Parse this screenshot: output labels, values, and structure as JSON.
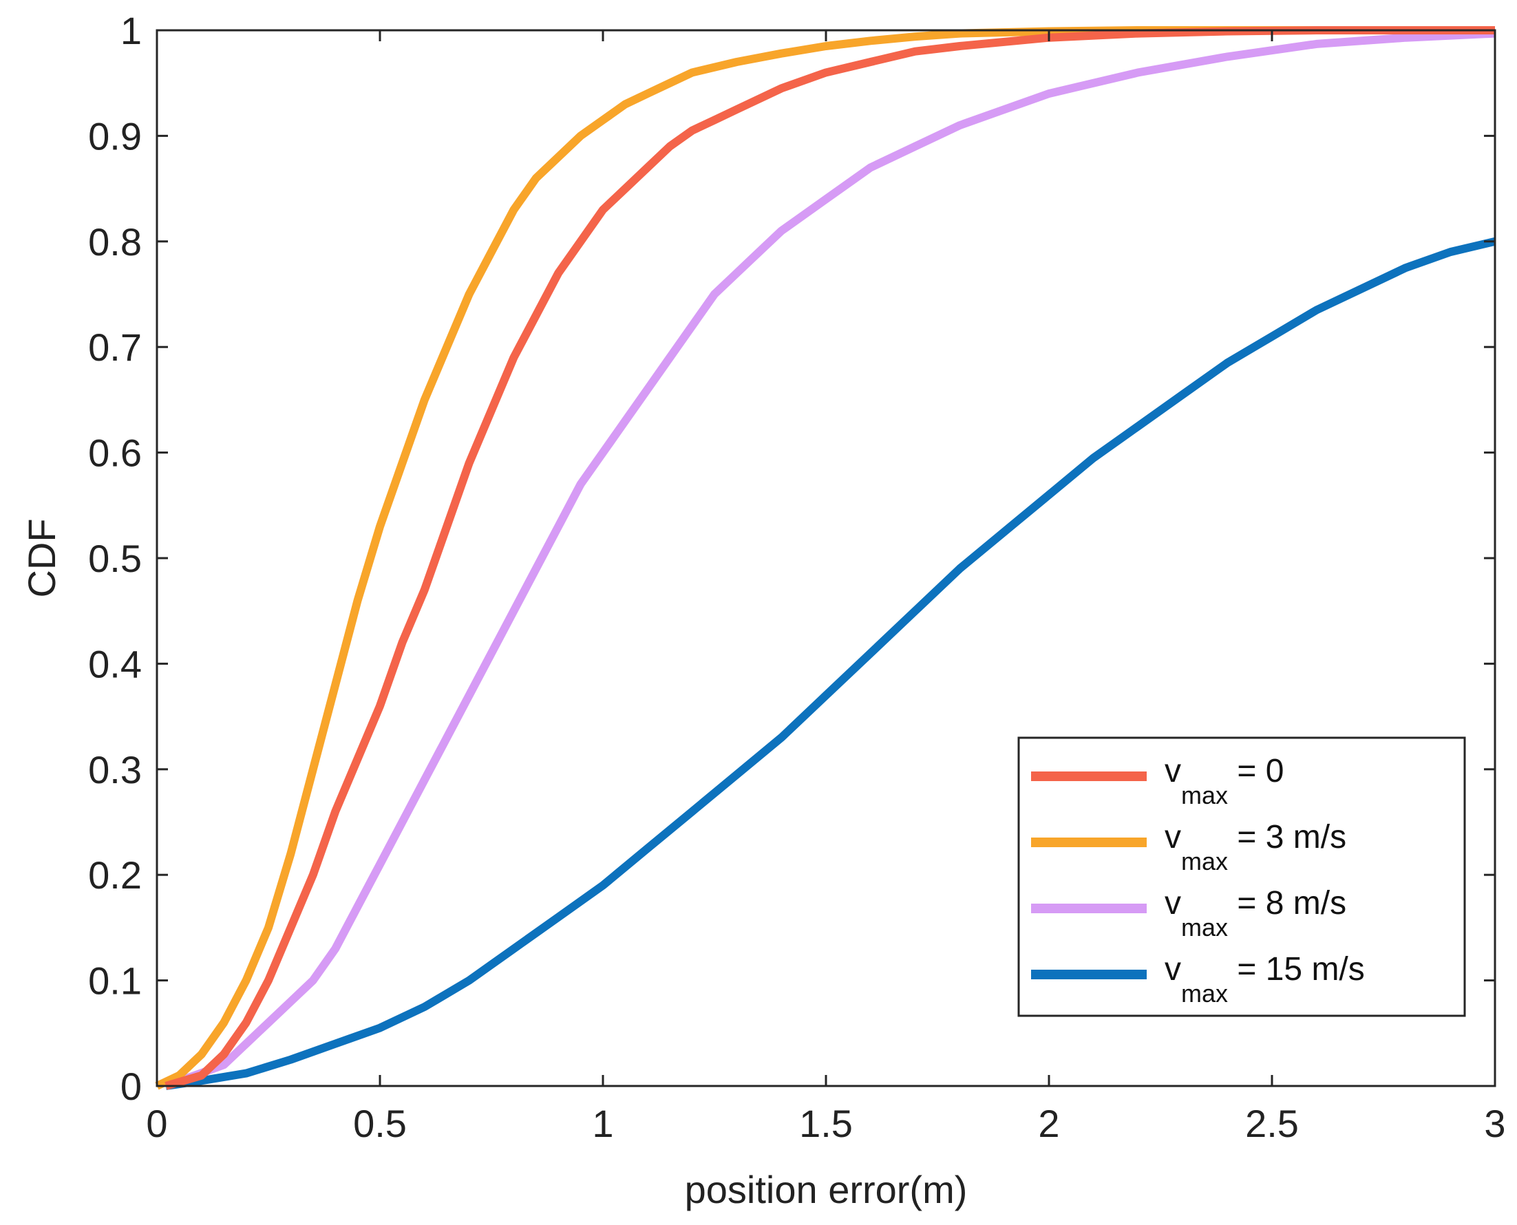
{
  "chart_data": {
    "type": "line",
    "title": "",
    "xlabel": "position error(m)",
    "ylabel": "CDF",
    "xlim": [
      0,
      3
    ],
    "ylim": [
      0,
      1
    ],
    "xticks": [
      0,
      0.5,
      1,
      1.5,
      2,
      2.5,
      3
    ],
    "yticks": [
      0,
      0.1,
      0.2,
      0.3,
      0.4,
      0.5,
      0.6,
      0.7,
      0.8,
      0.9,
      1
    ],
    "xtick_labels": [
      "0",
      "0.5",
      "1",
      "1.5",
      "2",
      "2.5",
      "3"
    ],
    "ytick_labels": [
      "0",
      "0.1",
      "0.2",
      "0.3",
      "0.4",
      "0.5",
      "0.6",
      "0.7",
      "0.8",
      "0.9",
      "1"
    ],
    "grid": false,
    "legend_position": "bottom-right",
    "series": [
      {
        "name": "v_max = 0",
        "label_main": "v",
        "label_sub": "max",
        "label_rest": " = 0",
        "color": "#f4644a",
        "x": [
          0.02,
          0.1,
          0.15,
          0.2,
          0.25,
          0.3,
          0.35,
          0.4,
          0.45,
          0.5,
          0.55,
          0.6,
          0.65,
          0.7,
          0.75,
          0.8,
          0.85,
          0.9,
          0.95,
          1.0,
          1.05,
          1.1,
          1.15,
          1.2,
          1.25,
          1.3,
          1.4,
          1.5,
          1.6,
          1.7,
          1.8,
          2.0,
          2.2,
          2.4,
          2.6,
          2.8,
          3.0
        ],
        "y": [
          0.0,
          0.01,
          0.03,
          0.06,
          0.1,
          0.15,
          0.2,
          0.26,
          0.31,
          0.36,
          0.42,
          0.47,
          0.53,
          0.59,
          0.64,
          0.69,
          0.73,
          0.77,
          0.8,
          0.83,
          0.85,
          0.87,
          0.89,
          0.905,
          0.915,
          0.925,
          0.945,
          0.96,
          0.97,
          0.98,
          0.985,
          0.993,
          0.997,
          0.999,
          1.0,
          1.0,
          1.0
        ]
      },
      {
        "name": "v_max = 3 m/s",
        "label_main": "v",
        "label_sub": "max",
        "label_rest": " = 3 m/s",
        "color": "#f8a52a",
        "x": [
          0.0,
          0.05,
          0.1,
          0.15,
          0.2,
          0.25,
          0.3,
          0.35,
          0.4,
          0.45,
          0.5,
          0.55,
          0.6,
          0.65,
          0.7,
          0.75,
          0.8,
          0.85,
          0.9,
          0.95,
          1.0,
          1.05,
          1.1,
          1.15,
          1.2,
          1.3,
          1.4,
          1.5,
          1.6,
          1.7,
          1.8,
          2.0,
          2.2,
          2.4,
          2.6,
          3.0
        ],
        "y": [
          0.0,
          0.01,
          0.03,
          0.06,
          0.1,
          0.15,
          0.22,
          0.3,
          0.38,
          0.46,
          0.53,
          0.59,
          0.65,
          0.7,
          0.75,
          0.79,
          0.83,
          0.86,
          0.88,
          0.9,
          0.915,
          0.93,
          0.94,
          0.95,
          0.96,
          0.97,
          0.978,
          0.985,
          0.99,
          0.994,
          0.997,
          0.999,
          1.0,
          1.0,
          1.0,
          1.0
        ]
      },
      {
        "name": "v_max = 8 m/s",
        "label_main": "v",
        "label_sub": "max",
        "label_rest": " = 8 m/s",
        "color": "#d69bf5",
        "x": [
          0.02,
          0.15,
          0.2,
          0.25,
          0.3,
          0.35,
          0.4,
          0.45,
          0.5,
          0.55,
          0.6,
          0.65,
          0.7,
          0.75,
          0.8,
          0.85,
          0.9,
          0.95,
          1.0,
          1.05,
          1.1,
          1.15,
          1.2,
          1.25,
          1.3,
          1.35,
          1.4,
          1.5,
          1.6,
          1.7,
          1.8,
          1.9,
          2.0,
          2.2,
          2.4,
          2.6,
          2.8,
          3.0
        ],
        "y": [
          0.0,
          0.02,
          0.04,
          0.06,
          0.08,
          0.1,
          0.13,
          0.17,
          0.21,
          0.25,
          0.29,
          0.33,
          0.37,
          0.41,
          0.45,
          0.49,
          0.53,
          0.57,
          0.6,
          0.63,
          0.66,
          0.69,
          0.72,
          0.75,
          0.77,
          0.79,
          0.81,
          0.84,
          0.87,
          0.89,
          0.91,
          0.925,
          0.94,
          0.96,
          0.975,
          0.987,
          0.993,
          0.997
        ]
      },
      {
        "name": "v_max = 15 m/s",
        "label_main": "v",
        "label_sub": "max",
        "label_rest": " = 15 m/s",
        "color": "#0d72bd",
        "x": [
          0.02,
          0.1,
          0.2,
          0.3,
          0.4,
          0.5,
          0.6,
          0.7,
          0.8,
          0.9,
          1.0,
          1.1,
          1.2,
          1.3,
          1.4,
          1.5,
          1.6,
          1.7,
          1.8,
          1.9,
          2.0,
          2.1,
          2.2,
          2.3,
          2.4,
          2.5,
          2.6,
          2.7,
          2.8,
          2.9,
          3.0
        ],
        "y": [
          0.0,
          0.005,
          0.012,
          0.025,
          0.04,
          0.055,
          0.075,
          0.1,
          0.13,
          0.16,
          0.19,
          0.225,
          0.26,
          0.295,
          0.33,
          0.37,
          0.41,
          0.45,
          0.49,
          0.525,
          0.56,
          0.595,
          0.625,
          0.655,
          0.685,
          0.71,
          0.735,
          0.755,
          0.775,
          0.79,
          0.8
        ]
      }
    ]
  }
}
